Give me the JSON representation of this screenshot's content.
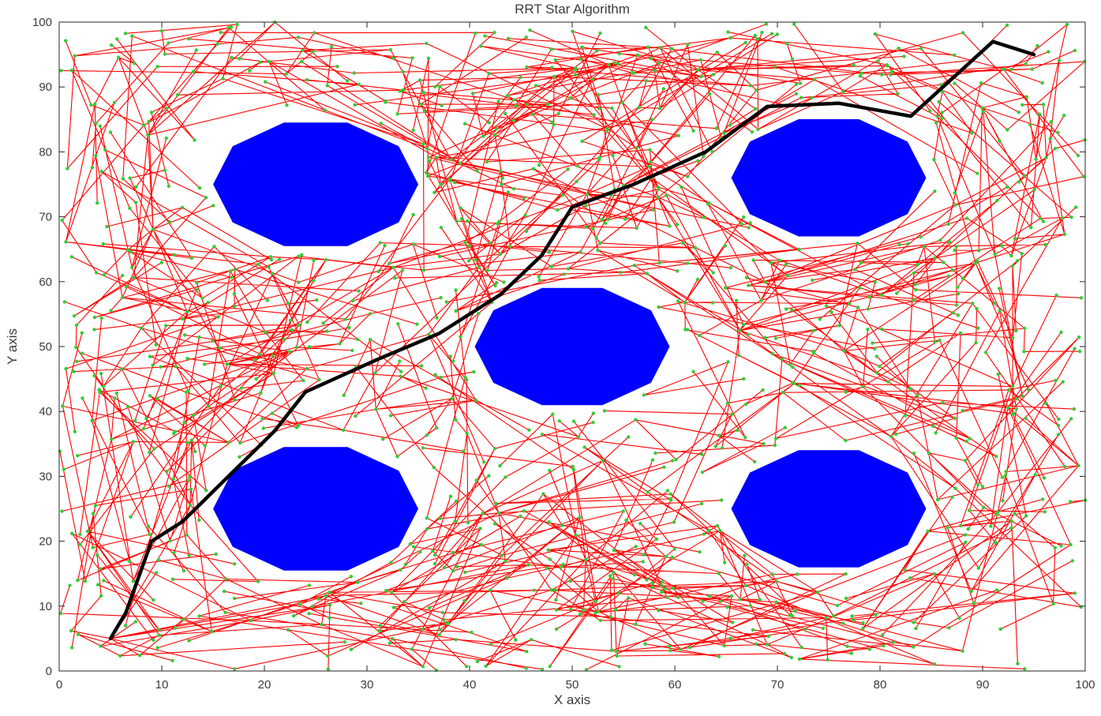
{
  "chart_data": {
    "type": "scatter",
    "title": "RRT Star Algorithm",
    "xlabel": "X axis",
    "ylabel": "Y axis",
    "xlim": [
      0,
      100
    ],
    "ylim": [
      0,
      100
    ],
    "xticks": [
      0,
      10,
      20,
      30,
      40,
      50,
      60,
      70,
      80,
      90,
      100
    ],
    "yticks": [
      0,
      10,
      20,
      30,
      40,
      50,
      60,
      70,
      80,
      90,
      100
    ],
    "grid": false,
    "axis_color": "#262626",
    "text_color": "#3c3c3c",
    "obstacles": {
      "shape": "decagon",
      "color": "#0000FF",
      "items": [
        {
          "cx": 25,
          "cy": 75,
          "r": 10
        },
        {
          "cx": 75,
          "cy": 76,
          "r": 9.5
        },
        {
          "cx": 50,
          "cy": 50,
          "r": 9.5
        },
        {
          "cx": 25,
          "cy": 25,
          "r": 10
        },
        {
          "cx": 75,
          "cy": 25,
          "r": 9.5
        }
      ]
    },
    "tree": {
      "start": [
        5,
        5
      ],
      "node_count": 1150,
      "seed": 7,
      "neighbor_samples": 14,
      "max_edge_length": 22,
      "edge_color": "#FF0000",
      "edge_width": 1.1,
      "node_color": "#33CC33",
      "node_radius": 2.2
    },
    "path": {
      "color": "#000000",
      "width": 4.5,
      "points": [
        [
          5,
          5
        ],
        [
          6.5,
          9
        ],
        [
          9,
          20
        ],
        [
          12,
          23
        ],
        [
          21,
          37
        ],
        [
          24,
          43
        ],
        [
          31,
          48
        ],
        [
          37,
          52
        ],
        [
          43,
          58
        ],
        [
          47,
          64
        ],
        [
          50,
          71.5
        ],
        [
          56,
          75
        ],
        [
          63,
          80
        ],
        [
          69,
          87
        ],
        [
          76,
          87.5
        ],
        [
          83,
          85.5
        ],
        [
          91,
          97
        ],
        [
          95,
          95
        ]
      ]
    }
  }
}
